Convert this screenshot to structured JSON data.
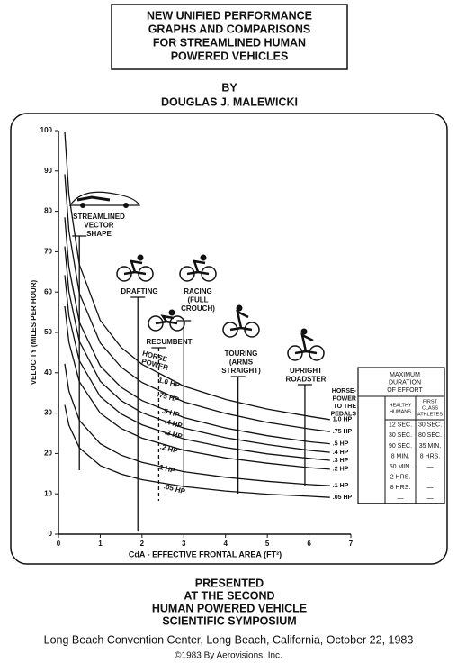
{
  "header": {
    "title_lines": [
      "NEW UNIFIED PERFORMANCE",
      "GRAPHS AND COMPARISONS",
      "FOR STREAMLINED HUMAN",
      "POWERED VEHICLES"
    ],
    "by": "BY",
    "author": "DOUGLAS J. MALEWICKI"
  },
  "chart_data": {
    "type": "line",
    "ylabel": "VELOCITY (MILES PER HOUR)",
    "xlabel": "CdA - EFFECTIVE FRONTAL AREA (FT²)",
    "xlim": [
      0,
      7
    ],
    "xticks": [
      0,
      1,
      2,
      3,
      4,
      5,
      6,
      7
    ],
    "ylim": [
      0,
      100
    ],
    "yticks": [
      0,
      10,
      20,
      30,
      40,
      50,
      60,
      70,
      80,
      90,
      100
    ],
    "grid": false,
    "x": [
      0.15,
      0.25,
      0.5,
      1,
      1.5,
      2,
      3,
      4,
      5,
      6,
      6.5
    ],
    "series": [
      {
        "name": "1.0 HP",
        "color": "#111",
        "values": [
          99.7,
          84.1,
          66.8,
          53,
          46.3,
          42.1,
          36.7,
          33.4,
          31,
          29.2,
          28.4
        ]
      },
      {
        "name": ".75 HP",
        "color": "#111",
        "values": [
          89.2,
          75.2,
          59.7,
          47.4,
          41.4,
          37.6,
          32.8,
          29.9,
          27.7,
          26.1,
          25.4
        ]
      },
      {
        "name": ".5 HP",
        "color": "#111",
        "values": [
          78.5,
          66.2,
          52.5,
          41.7,
          36.4,
          33.1,
          28.9,
          26.3,
          24.4,
          22.9,
          22.4
        ]
      },
      {
        "name": ".4 HP",
        "color": "#111",
        "values": [
          71.3,
          60.1,
          47.8,
          37.9,
          33.1,
          30.1,
          26.3,
          23.9,
          22.2,
          20.8,
          20.3
        ]
      },
      {
        "name": ".3 HP",
        "color": "#111",
        "values": [
          64.2,
          54.1,
          43,
          34.1,
          29.8,
          27.1,
          23.6,
          21.5,
          19.9,
          18.8,
          18.3
        ]
      },
      {
        "name": ".2 HP",
        "color": "#111",
        "values": [
          56.5,
          47.6,
          37.8,
          30,
          26.2,
          23.8,
          20.8,
          18.9,
          17.6,
          16.5,
          16.1
        ]
      },
      {
        "name": ".1 HP",
        "color": "#111",
        "values": [
          42.2,
          35.5,
          28.2,
          22.4,
          19.6,
          17.8,
          15.5,
          14.1,
          13.1,
          12.3,
          12
        ]
      },
      {
        "name": ".05 HP",
        "color": "#111",
        "values": [
          32,
          27,
          21.4,
          17,
          14.9,
          13.5,
          11.8,
          10.7,
          9.9,
          9.4,
          9.1
        ]
      }
    ],
    "horse_power_label": [
      "HORSE",
      "POWER"
    ],
    "pedal_power_label": [
      "HORSE-",
      "POWER",
      "TO THE",
      "PEDALS"
    ],
    "vehicles": [
      {
        "label": [
          "STREAMLINED",
          "VECTOR",
          "SHAPE"
        ],
        "cda": 0.5
      },
      {
        "label": [
          "DRAFTING"
        ],
        "cda": 1.9
      },
      {
        "label": [
          "RACING",
          "(FULL",
          "CROUCH)"
        ],
        "cda": 3
      },
      {
        "label": [
          "RECUMBENT"
        ],
        "cda": 2.4
      },
      {
        "label": [
          "TOURING",
          "(ARMS",
          "STRAIGHT)"
        ],
        "cda": 4.3
      },
      {
        "label": [
          "UPRIGHT",
          "ROADSTER"
        ],
        "cda": 5.9
      }
    ],
    "duration_table": {
      "title": [
        "MAXIMUM",
        "DURATION",
        "OF EFFORT"
      ],
      "columns": [
        [
          "HEALTHY",
          "HUMANS"
        ],
        [
          "FIRST",
          "CLASS",
          "ATHLETES"
        ]
      ],
      "rows": [
        [
          "12 SEC.",
          "30 SEC."
        ],
        [
          "30 SEC.",
          "80 SEC."
        ],
        [
          "90 SEC.",
          "35 MIN."
        ],
        [
          "8 MIN.",
          "8 HRS."
        ],
        [
          "50 MIN.",
          "—"
        ],
        [
          "2 HRS.",
          "—"
        ],
        [
          "8 HRS.",
          "—"
        ],
        [
          "—",
          "—"
        ]
      ]
    }
  },
  "footer": {
    "lines": [
      "PRESENTED",
      "AT THE SECOND",
      "HUMAN POWERED VEHICLE",
      "SCIENTIFIC SYMPOSIUM"
    ],
    "venue": "Long Beach Convention Center, Long Beach, California, October 22, 1983",
    "copyright": "©1983 By Aerovisions, Inc."
  }
}
